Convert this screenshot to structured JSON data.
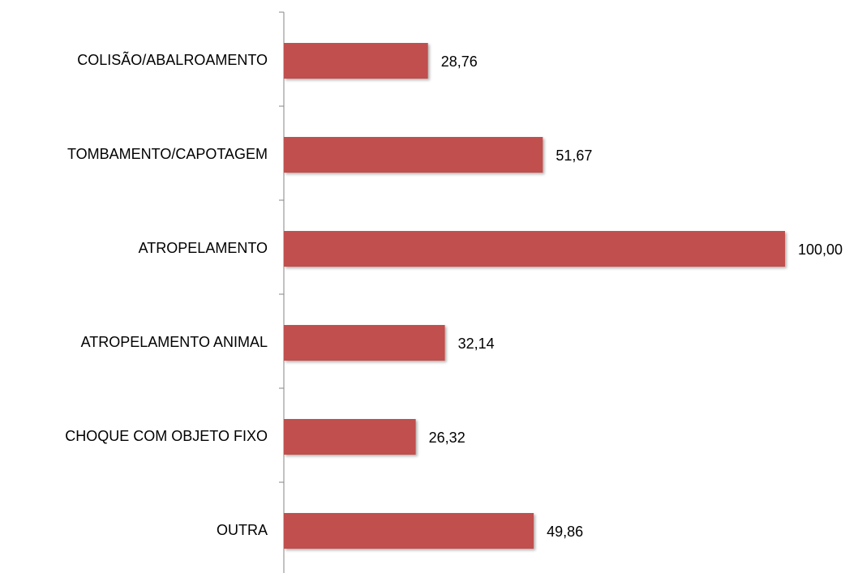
{
  "chart_data": {
    "type": "bar",
    "orientation": "horizontal",
    "categories": [
      "COLISÃO/ABALROAMENTO",
      "TOMBAMENTO/CAPOTAGEM",
      "ATROPELAMENTO",
      "ATROPELAMENTO ANIMAL",
      "CHOQUE COM OBJETO FIXO",
      "OUTRA"
    ],
    "values": [
      28.76,
      51.67,
      100.0,
      32.14,
      26.32,
      49.86
    ],
    "value_labels": [
      "28,76",
      "51,67",
      "100,00",
      "32,14",
      "26,32",
      "49,86"
    ],
    "color": "#c0504d"
  }
}
